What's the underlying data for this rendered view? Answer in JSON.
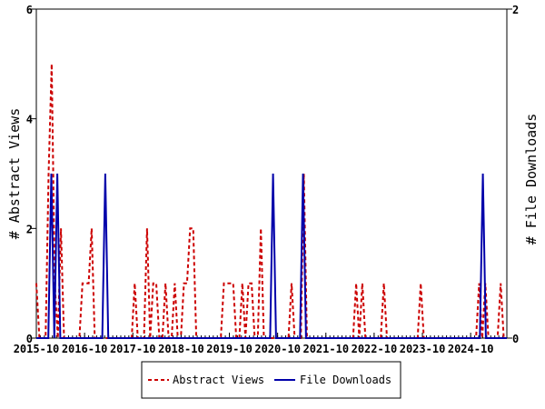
{
  "chart_data": {
    "type": "line",
    "x_start": "2015-10",
    "x_end": "2025-07",
    "xticks": [
      "2015-10",
      "2016-10",
      "2017-10",
      "2018-10",
      "2019-10",
      "2020-10",
      "2021-10",
      "2022-10",
      "2023-10",
      "2024-10"
    ],
    "ylabel_left": "# Abstract Views",
    "ylabel_right": "# File Downloads",
    "ylim_left": [
      0,
      6
    ],
    "ylim_right": [
      0,
      2
    ],
    "yticks_left": [
      "0",
      "2",
      "4",
      "6"
    ],
    "yticks_right": [
      "0",
      "2"
    ],
    "grid": false,
    "legend_position": "bottom",
    "series": [
      {
        "name": "Abstract Views",
        "axis": "left",
        "color": "#cc0000",
        "style": "dashed",
        "values": [
          1,
          0,
          0,
          0,
          3,
          5,
          1,
          0,
          2,
          0,
          0,
          0,
          0,
          0,
          0,
          1,
          1,
          1,
          2,
          0,
          0,
          0,
          0,
          0,
          0,
          0,
          0,
          0,
          0,
          0,
          0,
          0,
          1,
          0,
          0,
          0,
          2,
          0,
          1,
          1,
          0,
          0,
          1,
          0,
          0,
          1,
          0,
          0,
          1,
          1,
          2,
          2,
          0,
          0,
          0,
          0,
          0,
          0,
          0,
          0,
          0,
          1,
          1,
          1,
          1,
          0,
          0,
          1,
          0,
          1,
          1,
          0,
          0,
          2,
          0,
          0,
          0,
          0,
          0,
          0,
          0,
          0,
          0,
          1,
          0,
          0,
          0,
          3,
          0,
          0,
          0,
          0,
          0,
          0,
          0,
          0,
          0,
          0,
          0,
          0,
          0,
          0,
          0,
          0,
          1,
          0,
          1,
          0,
          0,
          0,
          0,
          0,
          0,
          1,
          0,
          0,
          0,
          0,
          0,
          0,
          0,
          0,
          0,
          0,
          0,
          1,
          0,
          0,
          0,
          0,
          0,
          0,
          0,
          0,
          0,
          0,
          0,
          0,
          0,
          0,
          0,
          0,
          0,
          0,
          1,
          0,
          1,
          0,
          0,
          0,
          0,
          1,
          0,
          0
        ]
      },
      {
        "name": "File Downloads",
        "axis": "right",
        "color": "#0000aa",
        "style": "solid",
        "values": [
          0,
          0,
          0,
          0,
          0,
          1,
          0,
          1,
          0,
          0,
          0,
          0,
          0,
          0,
          0,
          0,
          0,
          0,
          0,
          0,
          0,
          0,
          0,
          1,
          0,
          0,
          0,
          0,
          0,
          0,
          0,
          0,
          0,
          0,
          0,
          0,
          0,
          0,
          0,
          0,
          0,
          0,
          0,
          0,
          0,
          0,
          0,
          0,
          0,
          0,
          0,
          0,
          0,
          0,
          0,
          0,
          0,
          0,
          0,
          0,
          0,
          0,
          0,
          0,
          0,
          0,
          0,
          0,
          0,
          0,
          0,
          0,
          0,
          0,
          0,
          0,
          0,
          0,
          0,
          1,
          0,
          0,
          0,
          0,
          0,
          0,
          0,
          0,
          0,
          1,
          0,
          0,
          0,
          0,
          0,
          0,
          0,
          0,
          0,
          0,
          0,
          0,
          0,
          0,
          0,
          0,
          0,
          0,
          0,
          0,
          0,
          0,
          0,
          0,
          0,
          0,
          0,
          0,
          0,
          0,
          0,
          0,
          0,
          0,
          0,
          0,
          0,
          0,
          0,
          0,
          0,
          0,
          0,
          0,
          0,
          0,
          0,
          0,
          0,
          0,
          0,
          0,
          0,
          0,
          0,
          0,
          0,
          0,
          0,
          1,
          0,
          0,
          0,
          0,
          0,
          0,
          0,
          0
        ]
      }
    ]
  }
}
